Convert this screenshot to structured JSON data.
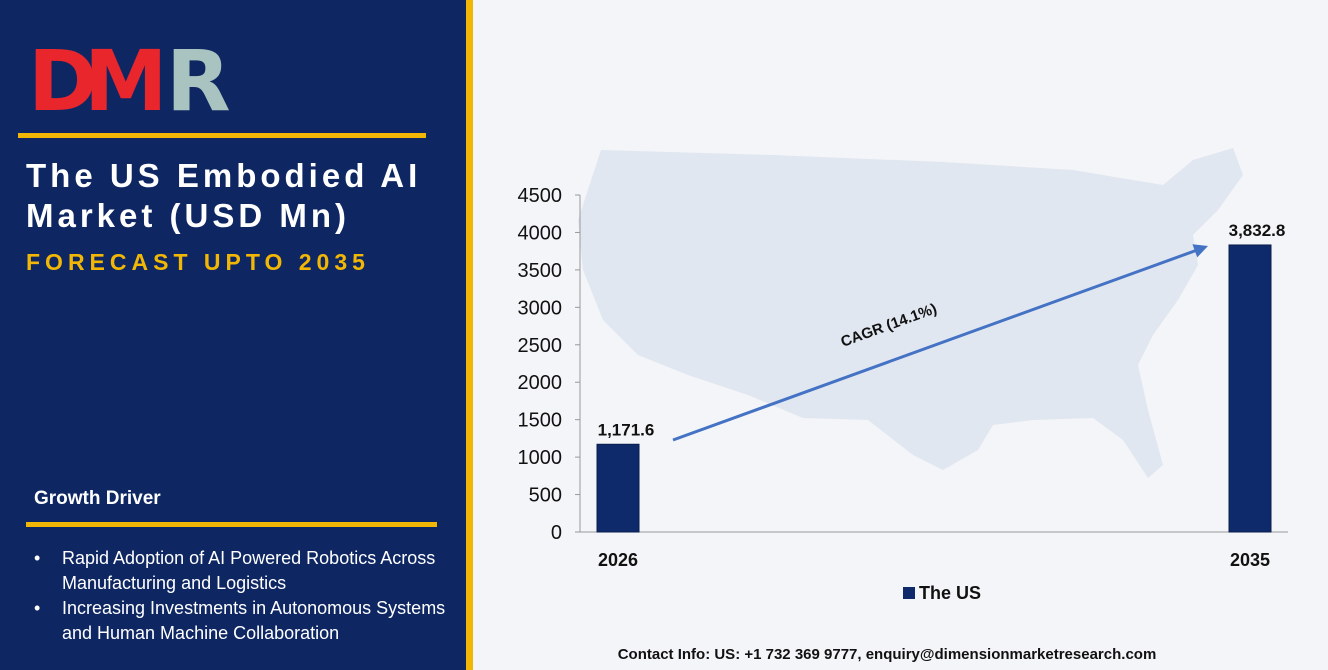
{
  "brand": {
    "logo_text": "DMR"
  },
  "header": {
    "title": "The US Embodied AI Market (USD Mn)",
    "subtitle": "FORECAST UPTO 2035"
  },
  "growth": {
    "heading": "Growth Driver",
    "items": [
      "Rapid Adoption of AI Powered Robotics Across Manufacturing and Logistics",
      "Increasing Investments in Autonomous Systems and Human Machine Collaboration"
    ]
  },
  "contact": "Contact Info: US: +1 732 369 9777, enquiry@dimensionmarketresearch.com",
  "colors": {
    "panel": "#0e2763",
    "accent": "#f2b705",
    "bar": "#0f2a6b",
    "arrow": "#4472c4",
    "logo_red": "#e8262c",
    "logo_teal": "#a9c4c0"
  },
  "chart_data": {
    "type": "bar",
    "categories": [
      "2026",
      "2035"
    ],
    "series": [
      {
        "name": "The US",
        "values": [
          1171.6,
          3832.8
        ]
      }
    ],
    "data_labels": [
      "1,171.6",
      "3,832.8"
    ],
    "ylim": [
      0,
      4500
    ],
    "yticks": [
      "0",
      "500",
      "1000",
      "1500",
      "2000",
      "2500",
      "3000",
      "3500",
      "4000",
      "4500"
    ],
    "annotation": "CAGR (14.1%)",
    "legend_position": "bottom",
    "grid": false
  }
}
